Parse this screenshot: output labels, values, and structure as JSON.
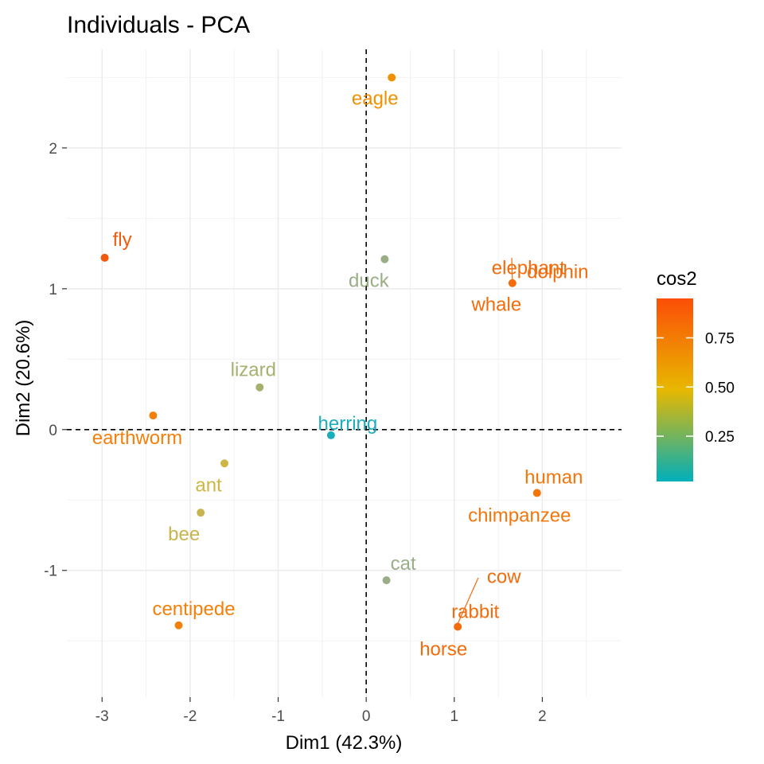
{
  "chart_data": {
    "type": "scatter",
    "title": "Individuals - PCA",
    "xlabel": "Dim1 (42.3%)",
    "ylabel": "Dim2 (20.6%)",
    "xlim": [
      -3.4,
      2.9
    ],
    "ylim": [
      -1.9,
      2.7
    ],
    "x_ticks": [
      -3,
      -2,
      -1,
      0,
      1,
      2
    ],
    "y_ticks": [
      -1,
      0,
      1,
      2
    ],
    "grid": true,
    "reference_lines": {
      "x": 0,
      "y": 0,
      "style": "dashed"
    },
    "legend": {
      "title": "cos2",
      "position": "right",
      "ticks": [
        "0.25",
        "0.50",
        "0.75"
      ],
      "tick_values": [
        0.25,
        0.5,
        0.75
      ],
      "range": [
        0.02,
        0.95
      ],
      "colors": [
        "#00AFBB",
        "#E7B800",
        "#FC4E07"
      ]
    },
    "points": [
      {
        "label": "fly",
        "x": -2.97,
        "y": 1.22,
        "cos2": 0.9,
        "color": "#F15A0A"
      },
      {
        "label": "eagle",
        "x": 0.29,
        "y": 2.5,
        "cos2": 0.55,
        "color": "#F19000"
      },
      {
        "label": "dolphin",
        "x": 1.66,
        "y": 1.04,
        "cos2": 0.8,
        "color": "#F36B0B"
      },
      {
        "label": "elephant",
        "x": 1.66,
        "y": 1.04,
        "cos2": 0.8,
        "color": "#F36B0B"
      },
      {
        "label": "whale",
        "x": 1.66,
        "y": 1.04,
        "cos2": 0.8,
        "color": "#F36B0B"
      },
      {
        "label": "duck",
        "x": 0.21,
        "y": 1.21,
        "cos2": 0.18,
        "color": "#9AAE85"
      },
      {
        "label": "lizard",
        "x": -1.21,
        "y": 0.3,
        "cos2": 0.22,
        "color": "#A7B06F"
      },
      {
        "label": "herring",
        "x": -0.4,
        "y": -0.04,
        "cos2": 0.03,
        "color": "#1AAEBB"
      },
      {
        "label": "earthworm",
        "x": -2.42,
        "y": 0.1,
        "cos2": 0.72,
        "color": "#F3800B"
      },
      {
        "label": "ant",
        "x": -1.61,
        "y": -0.24,
        "cos2": 0.4,
        "color": "#CDB644"
      },
      {
        "label": "bee",
        "x": -1.88,
        "y": -0.59,
        "cos2": 0.38,
        "color": "#C8B44E"
      },
      {
        "label": "human",
        "x": 1.94,
        "y": -0.45,
        "cos2": 0.75,
        "color": "#F3760B"
      },
      {
        "label": "chimpanzee",
        "x": 1.94,
        "y": -0.45,
        "cos2": 0.75,
        "color": "#F3760B"
      },
      {
        "label": "cat",
        "x": 0.23,
        "y": -1.07,
        "cos2": 0.18,
        "color": "#98AD88"
      },
      {
        "label": "cow",
        "x": 1.04,
        "y": -1.4,
        "cos2": 0.8,
        "color": "#F36B0B"
      },
      {
        "label": "rabbit",
        "x": 1.04,
        "y": -1.4,
        "cos2": 0.8,
        "color": "#F36B0B"
      },
      {
        "label": "horse",
        "x": 1.04,
        "y": -1.4,
        "cos2": 0.8,
        "color": "#F36B0B"
      },
      {
        "label": "centipede",
        "x": -2.13,
        "y": -1.39,
        "cos2": 0.72,
        "color": "#F3800B"
      }
    ]
  }
}
